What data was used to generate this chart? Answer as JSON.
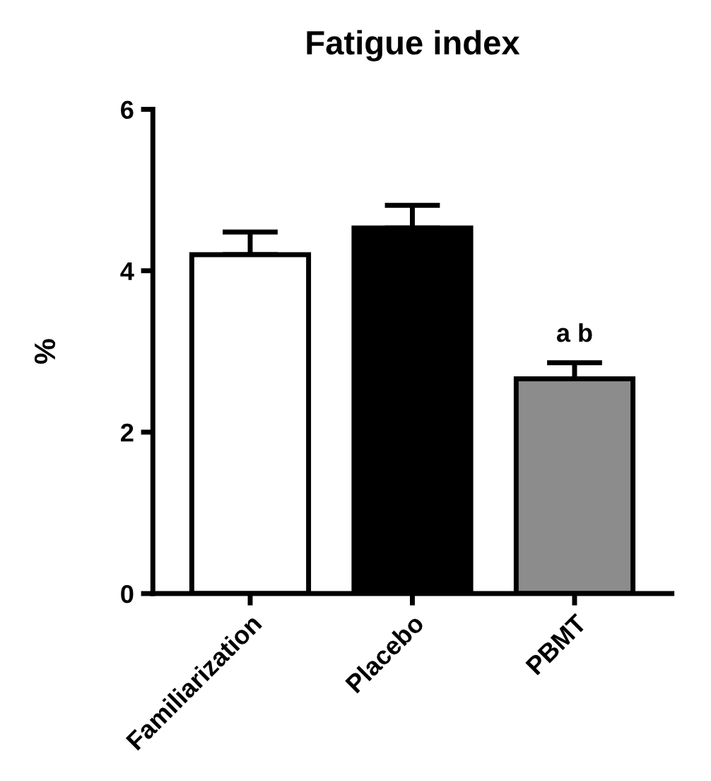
{
  "chart_data": {
    "type": "bar",
    "title": "Fatigue index",
    "ylabel": "%",
    "categories": [
      "Familiarization",
      "Placebo",
      "PBMT"
    ],
    "values": [
      4.2,
      4.53,
      2.66
    ],
    "colors": [
      "#ffffff",
      "#000000",
      "#8c8c8c"
    ],
    "errors": [
      [
        4.2,
        4.48
      ],
      [
        4.53,
        4.81
      ],
      [
        2.66,
        2.86
      ]
    ],
    "ylim": [
      0,
      6
    ],
    "yticks": [
      0,
      2,
      4,
      6
    ],
    "grid": false,
    "legend": false,
    "annotations": [
      {
        "text": "a b",
        "x": "PBMT",
        "y": 2.86
      }
    ]
  }
}
